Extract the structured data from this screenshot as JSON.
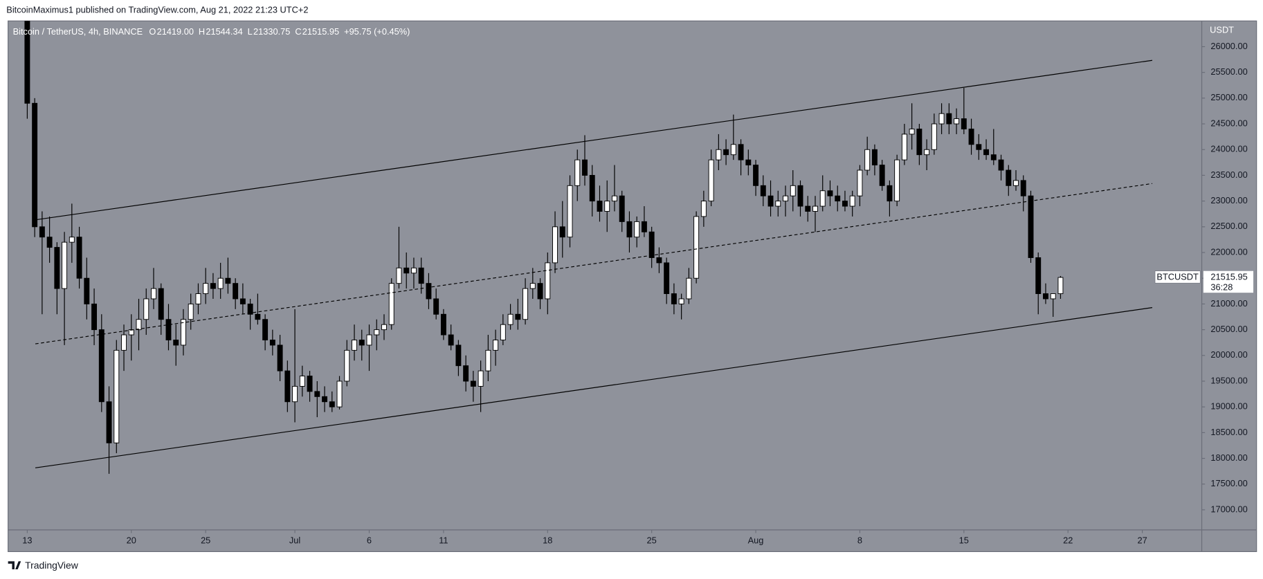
{
  "header": "BitcoinMaximus1 published on TradingView.com, Aug 21, 2022 21:23 UTC+2",
  "footer": "TradingView",
  "chart_data": {
    "type": "candlestick",
    "symbol": "Bitcoin / TetherUS, 4h, BINANCE",
    "ohlc": [
      {
        "label": "O",
        "value": "21419.00"
      },
      {
        "label": "H",
        "value": "21544.34"
      },
      {
        "label": "L",
        "value": "21330.75"
      },
      {
        "label": "C",
        "value": "21515.95"
      }
    ],
    "change": "+95.75 (+0.45%)",
    "y_unit": "USDT",
    "countdown": "36:28",
    "last_price": {
      "value": 21515.95,
      "label": "21515.95"
    },
    "background": "#8f929b",
    "up_color": "#ffffff",
    "down_color": "#000000",
    "wick_color": "#000000",
    "grid": false,
    "xlim": [
      "2022-06-11 17:00",
      "2022-08-31 00:00"
    ],
    "ylim": [
      16610,
      26500
    ],
    "yticks": [
      {
        "value": 17000,
        "label": "17000.00"
      },
      {
        "value": 17500,
        "label": "17500.00"
      },
      {
        "value": 18000,
        "label": "18000.00"
      },
      {
        "value": 18500,
        "label": "18500.00"
      },
      {
        "value": 19000,
        "label": "19000.00"
      },
      {
        "value": 19500,
        "label": "19500.00"
      },
      {
        "value": 20000,
        "label": "20000.00"
      },
      {
        "value": 20500,
        "label": "20500.00"
      },
      {
        "value": 21000,
        "label": "21000.00"
      },
      {
        "value": 21500,
        "label": "21500.00"
      },
      {
        "value": 22000,
        "label": "22000.00"
      },
      {
        "value": 22500,
        "label": "22500.00"
      },
      {
        "value": 23000,
        "label": "23000.00"
      },
      {
        "value": 23500,
        "label": "23500.00"
      },
      {
        "value": 24000,
        "label": "24000.00"
      },
      {
        "value": 24500,
        "label": "24500.00"
      },
      {
        "value": 25000,
        "label": "25000.00"
      },
      {
        "value": 25500,
        "label": "25500.00"
      },
      {
        "value": 26000,
        "label": "26000.00"
      }
    ],
    "xticks": [
      {
        "value": "2022-06-13",
        "label": "13"
      },
      {
        "value": "2022-06-20",
        "label": "20"
      },
      {
        "value": "2022-06-25",
        "label": "25"
      },
      {
        "value": "2022-07-01",
        "label": "Jul"
      },
      {
        "value": "2022-07-06",
        "label": "6"
      },
      {
        "value": "2022-07-11",
        "label": "11"
      },
      {
        "value": "2022-07-18",
        "label": "18"
      },
      {
        "value": "2022-07-25",
        "label": "25"
      },
      {
        "value": "2022-08-01",
        "label": "Aug"
      },
      {
        "value": "2022-08-08",
        "label": "8"
      },
      {
        "value": "2022-08-15",
        "label": "15"
      },
      {
        "value": "2022-08-22",
        "label": "22"
      },
      {
        "value": "2022-08-27",
        "label": "27"
      }
    ],
    "trendlines": [
      {
        "x": [
          "2022-06-13 13:00",
          "2022-08-27 16:00"
        ],
        "y": [
          22635,
          25734
        ],
        "color": "#000000",
        "dashed": false
      },
      {
        "x": [
          "2022-06-13 13:00",
          "2022-08-27 16:00"
        ],
        "y": [
          20225,
          23340
        ],
        "color": "#000000",
        "dashed": true
      },
      {
        "x": [
          "2022-06-13 13:00",
          "2022-08-27 16:00"
        ],
        "y": [
          17815,
          20930
        ],
        "color": "#000000",
        "dashed": false
      }
    ],
    "x": [
      "2022-06-13 00:00",
      "2022-06-13 12:00",
      "2022-06-14 00:00",
      "2022-06-14 12:00",
      "2022-06-15 00:00",
      "2022-06-15 12:00",
      "2022-06-16 00:00",
      "2022-06-16 12:00",
      "2022-06-17 00:00",
      "2022-06-17 12:00",
      "2022-06-18 00:00",
      "2022-06-18 12:00",
      "2022-06-19 00:00",
      "2022-06-19 12:00",
      "2022-06-20 00:00",
      "2022-06-20 12:00",
      "2022-06-21 00:00",
      "2022-06-21 12:00",
      "2022-06-22 00:00",
      "2022-06-22 12:00",
      "2022-06-23 00:00",
      "2022-06-23 12:00",
      "2022-06-24 00:00",
      "2022-06-24 12:00",
      "2022-06-25 00:00",
      "2022-06-25 12:00",
      "2022-06-26 00:00",
      "2022-06-26 12:00",
      "2022-06-27 00:00",
      "2022-06-27 12:00",
      "2022-06-28 00:00",
      "2022-06-28 12:00",
      "2022-06-29 00:00",
      "2022-06-29 12:00",
      "2022-06-30 00:00",
      "2022-06-30 12:00",
      "2022-07-01 00:00",
      "2022-07-01 12:00",
      "2022-07-02 00:00",
      "2022-07-02 12:00",
      "2022-07-03 00:00",
      "2022-07-03 12:00",
      "2022-07-04 00:00",
      "2022-07-04 12:00",
      "2022-07-05 00:00",
      "2022-07-05 12:00",
      "2022-07-06 00:00",
      "2022-07-06 12:00",
      "2022-07-07 00:00",
      "2022-07-07 12:00",
      "2022-07-08 00:00",
      "2022-07-08 12:00",
      "2022-07-09 00:00",
      "2022-07-09 12:00",
      "2022-07-10 00:00",
      "2022-07-10 12:00",
      "2022-07-11 00:00",
      "2022-07-11 12:00",
      "2022-07-12 00:00",
      "2022-07-12 12:00",
      "2022-07-13 00:00",
      "2022-07-13 12:00",
      "2022-07-14 00:00",
      "2022-07-14 12:00",
      "2022-07-15 00:00",
      "2022-07-15 12:00",
      "2022-07-16 00:00",
      "2022-07-16 12:00",
      "2022-07-17 00:00",
      "2022-07-17 12:00",
      "2022-07-18 00:00",
      "2022-07-18 12:00",
      "2022-07-19 00:00",
      "2022-07-19 12:00",
      "2022-07-20 00:00",
      "2022-07-20 12:00",
      "2022-07-21 00:00",
      "2022-07-21 12:00",
      "2022-07-22 00:00",
      "2022-07-22 12:00",
      "2022-07-23 00:00",
      "2022-07-23 12:00",
      "2022-07-24 00:00",
      "2022-07-24 12:00",
      "2022-07-25 00:00",
      "2022-07-25 12:00",
      "2022-07-26 00:00",
      "2022-07-26 12:00",
      "2022-07-27 00:00",
      "2022-07-27 12:00",
      "2022-07-28 00:00",
      "2022-07-28 12:00",
      "2022-07-29 00:00",
      "2022-07-29 12:00",
      "2022-07-30 00:00",
      "2022-07-30 12:00",
      "2022-07-31 00:00",
      "2022-07-31 12:00",
      "2022-08-01 00:00",
      "2022-08-01 12:00",
      "2022-08-02 00:00",
      "2022-08-02 12:00",
      "2022-08-03 00:00",
      "2022-08-03 12:00",
      "2022-08-04 00:00",
      "2022-08-04 12:00",
      "2022-08-05 00:00",
      "2022-08-05 12:00",
      "2022-08-06 00:00",
      "2022-08-06 12:00",
      "2022-08-07 00:00",
      "2022-08-07 12:00",
      "2022-08-08 00:00",
      "2022-08-08 12:00",
      "2022-08-09 00:00",
      "2022-08-09 12:00",
      "2022-08-10 00:00",
      "2022-08-10 12:00",
      "2022-08-11 00:00",
      "2022-08-11 12:00",
      "2022-08-12 00:00",
      "2022-08-12 12:00",
      "2022-08-13 00:00",
      "2022-08-13 12:00",
      "2022-08-14 00:00",
      "2022-08-14 12:00",
      "2022-08-15 00:00",
      "2022-08-15 12:00",
      "2022-08-16 00:00",
      "2022-08-16 12:00",
      "2022-08-17 00:00",
      "2022-08-17 12:00",
      "2022-08-18 00:00",
      "2022-08-18 12:00",
      "2022-08-19 00:00",
      "2022-08-19 12:00",
      "2022-08-20 00:00",
      "2022-08-20 12:00",
      "2022-08-21 00:00",
      "2022-08-21 12:00"
    ],
    "series": [
      {
        "name": "BTCUSDT",
        "open": [
          26570,
          24900,
          22500,
          22300,
          22100,
          21300,
          22200,
          22300,
          21500,
          21000,
          20500,
          19100,
          18300,
          20100,
          20400,
          20500,
          20700,
          21100,
          21300,
          20700,
          20300,
          20200,
          20700,
          21000,
          21200,
          21400,
          21300,
          21500,
          21400,
          21100,
          21000,
          20800,
          20700,
          20300,
          20200,
          19700,
          19100,
          19400,
          19600,
          19300,
          19200,
          19100,
          19000,
          19500,
          20100,
          20300,
          20200,
          20400,
          20500,
          20600,
          21400,
          21700,
          21600,
          21700,
          21400,
          21100,
          20800,
          20400,
          20200,
          19800,
          19500,
          19400,
          19700,
          20100,
          20300,
          20600,
          20800,
          20700,
          21300,
          21400,
          21100,
          21800,
          22500,
          22300,
          23300,
          23800,
          23500,
          23000,
          22800,
          23000,
          23100,
          22600,
          22300,
          22600,
          22400,
          21900,
          21800,
          21200,
          21000,
          21100,
          21500,
          22700,
          23000,
          23800,
          24000,
          23900,
          24100,
          23800,
          23700,
          23300,
          23100,
          22900,
          23000,
          23100,
          23300,
          22900,
          22800,
          22900,
          23200,
          23100,
          23000,
          22900,
          23100,
          23600,
          24000,
          23700,
          23300,
          23000,
          23800,
          24300,
          24400,
          23900,
          24000,
          24500,
          24700,
          24500,
          24600,
          24400,
          24100,
          24000,
          23900,
          23800,
          23600,
          23300,
          23400,
          23100,
          21900,
          21200,
          21100,
          21200
        ],
        "high": [
          26800,
          25000,
          22800,
          22700,
          22200,
          22400,
          22950,
          22500,
          21900,
          21300,
          20800,
          19400,
          20300,
          20600,
          20800,
          21100,
          21300,
          21700,
          21400,
          21000,
          20600,
          20900,
          21200,
          21400,
          21700,
          21600,
          21800,
          21900,
          21500,
          21400,
          21100,
          21200,
          20800,
          20500,
          20400,
          19900,
          20900,
          19800,
          19700,
          19500,
          19400,
          19300,
          19600,
          20300,
          20600,
          20500,
          20600,
          20700,
          20800,
          21500,
          22500,
          22000,
          21900,
          21900,
          21600,
          21300,
          20900,
          20600,
          20300,
          20000,
          19700,
          19900,
          20400,
          20500,
          20800,
          21000,
          21100,
          21500,
          21700,
          21500,
          22000,
          22800,
          23000,
          23500,
          24000,
          24280,
          23700,
          23300,
          23400,
          23700,
          23200,
          22800,
          22700,
          22900,
          22500,
          22100,
          21900,
          21400,
          21200,
          21700,
          22800,
          23200,
          24000,
          24300,
          24200,
          24680,
          24200,
          24000,
          23800,
          23500,
          23400,
          23200,
          23300,
          23600,
          23400,
          23100,
          23100,
          23500,
          23400,
          23300,
          23200,
          23200,
          23700,
          24250,
          24100,
          23800,
          23400,
          23900,
          24500,
          24900,
          24500,
          24200,
          24700,
          24900,
          24900,
          24800,
          25200,
          24600,
          24300,
          24200,
          24400,
          23900,
          23700,
          23600,
          23500,
          23200,
          22000,
          21400,
          21200,
          21544
        ],
        "low": [
          24600,
          22300,
          20800,
          21800,
          20800,
          20200,
          21800,
          21300,
          20700,
          20200,
          18900,
          17700,
          18100,
          19700,
          19900,
          20100,
          20400,
          20900,
          20400,
          20100,
          19800,
          20000,
          20500,
          20800,
          21000,
          21100,
          21100,
          21200,
          20900,
          20800,
          20500,
          20600,
          20100,
          20000,
          19500,
          18900,
          18700,
          19200,
          19100,
          18800,
          18900,
          18900,
          18950,
          19400,
          19900,
          19900,
          19700,
          20100,
          20300,
          20500,
          21300,
          21300,
          21300,
          21200,
          20900,
          20700,
          20300,
          20100,
          19600,
          19300,
          19100,
          18900,
          19500,
          19800,
          20200,
          20500,
          20500,
          20600,
          21100,
          20900,
          20800,
          21600,
          21900,
          22100,
          23000,
          23300,
          22700,
          22600,
          22400,
          22800,
          22400,
          22000,
          22100,
          22300,
          21700,
          21600,
          21000,
          20800,
          20700,
          21000,
          21400,
          22500,
          22900,
          23600,
          23700,
          23800,
          23500,
          23500,
          23100,
          22900,
          22700,
          22700,
          22700,
          22800,
          22700,
          22600,
          22400,
          22800,
          22900,
          22800,
          22800,
          22700,
          22900,
          23500,
          23500,
          23200,
          22700,
          22900,
          23700,
          24000,
          23700,
          23600,
          23900,
          24300,
          24300,
          24300,
          24300,
          23900,
          23800,
          23800,
          23700,
          23400,
          23100,
          23200,
          22800,
          21800,
          20800,
          21000,
          20750,
          21100
        ],
        "close": [
          24900,
          22500,
          22300,
          22100,
          21300,
          22200,
          22300,
          21500,
          21000,
          20500,
          19100,
          18300,
          20100,
          20400,
          20500,
          20700,
          21100,
          21300,
          20700,
          20300,
          20200,
          20700,
          21000,
          21200,
          21400,
          21300,
          21500,
          21400,
          21100,
          21000,
          20800,
          20700,
          20300,
          20200,
          19700,
          19100,
          19400,
          19600,
          19300,
          19200,
          19100,
          19000,
          19500,
          20100,
          20300,
          20200,
          20400,
          20500,
          20600,
          21400,
          21700,
          21600,
          21700,
          21400,
          21100,
          20800,
          20400,
          20200,
          19800,
          19500,
          19400,
          19700,
          20100,
          20300,
          20600,
          20800,
          20700,
          21300,
          21400,
          21100,
          21800,
          22500,
          22300,
          23300,
          23800,
          23500,
          23000,
          22800,
          23000,
          23100,
          22600,
          22300,
          22600,
          22400,
          21900,
          21800,
          21200,
          21000,
          21100,
          21500,
          22700,
          23000,
          23800,
          24000,
          23900,
          24100,
          23800,
          23700,
          23300,
          23100,
          22900,
          23000,
          23100,
          23300,
          22900,
          22800,
          22900,
          23200,
          23100,
          23000,
          22900,
          23100,
          23600,
          24000,
          23700,
          23300,
          23000,
          23800,
          24300,
          24400,
          23900,
          24000,
          24500,
          24700,
          24500,
          24600,
          24400,
          24100,
          24000,
          23900,
          23800,
          23600,
          23300,
          23400,
          23100,
          21900,
          21200,
          21100,
          21200,
          21515.95
        ]
      }
    ]
  }
}
